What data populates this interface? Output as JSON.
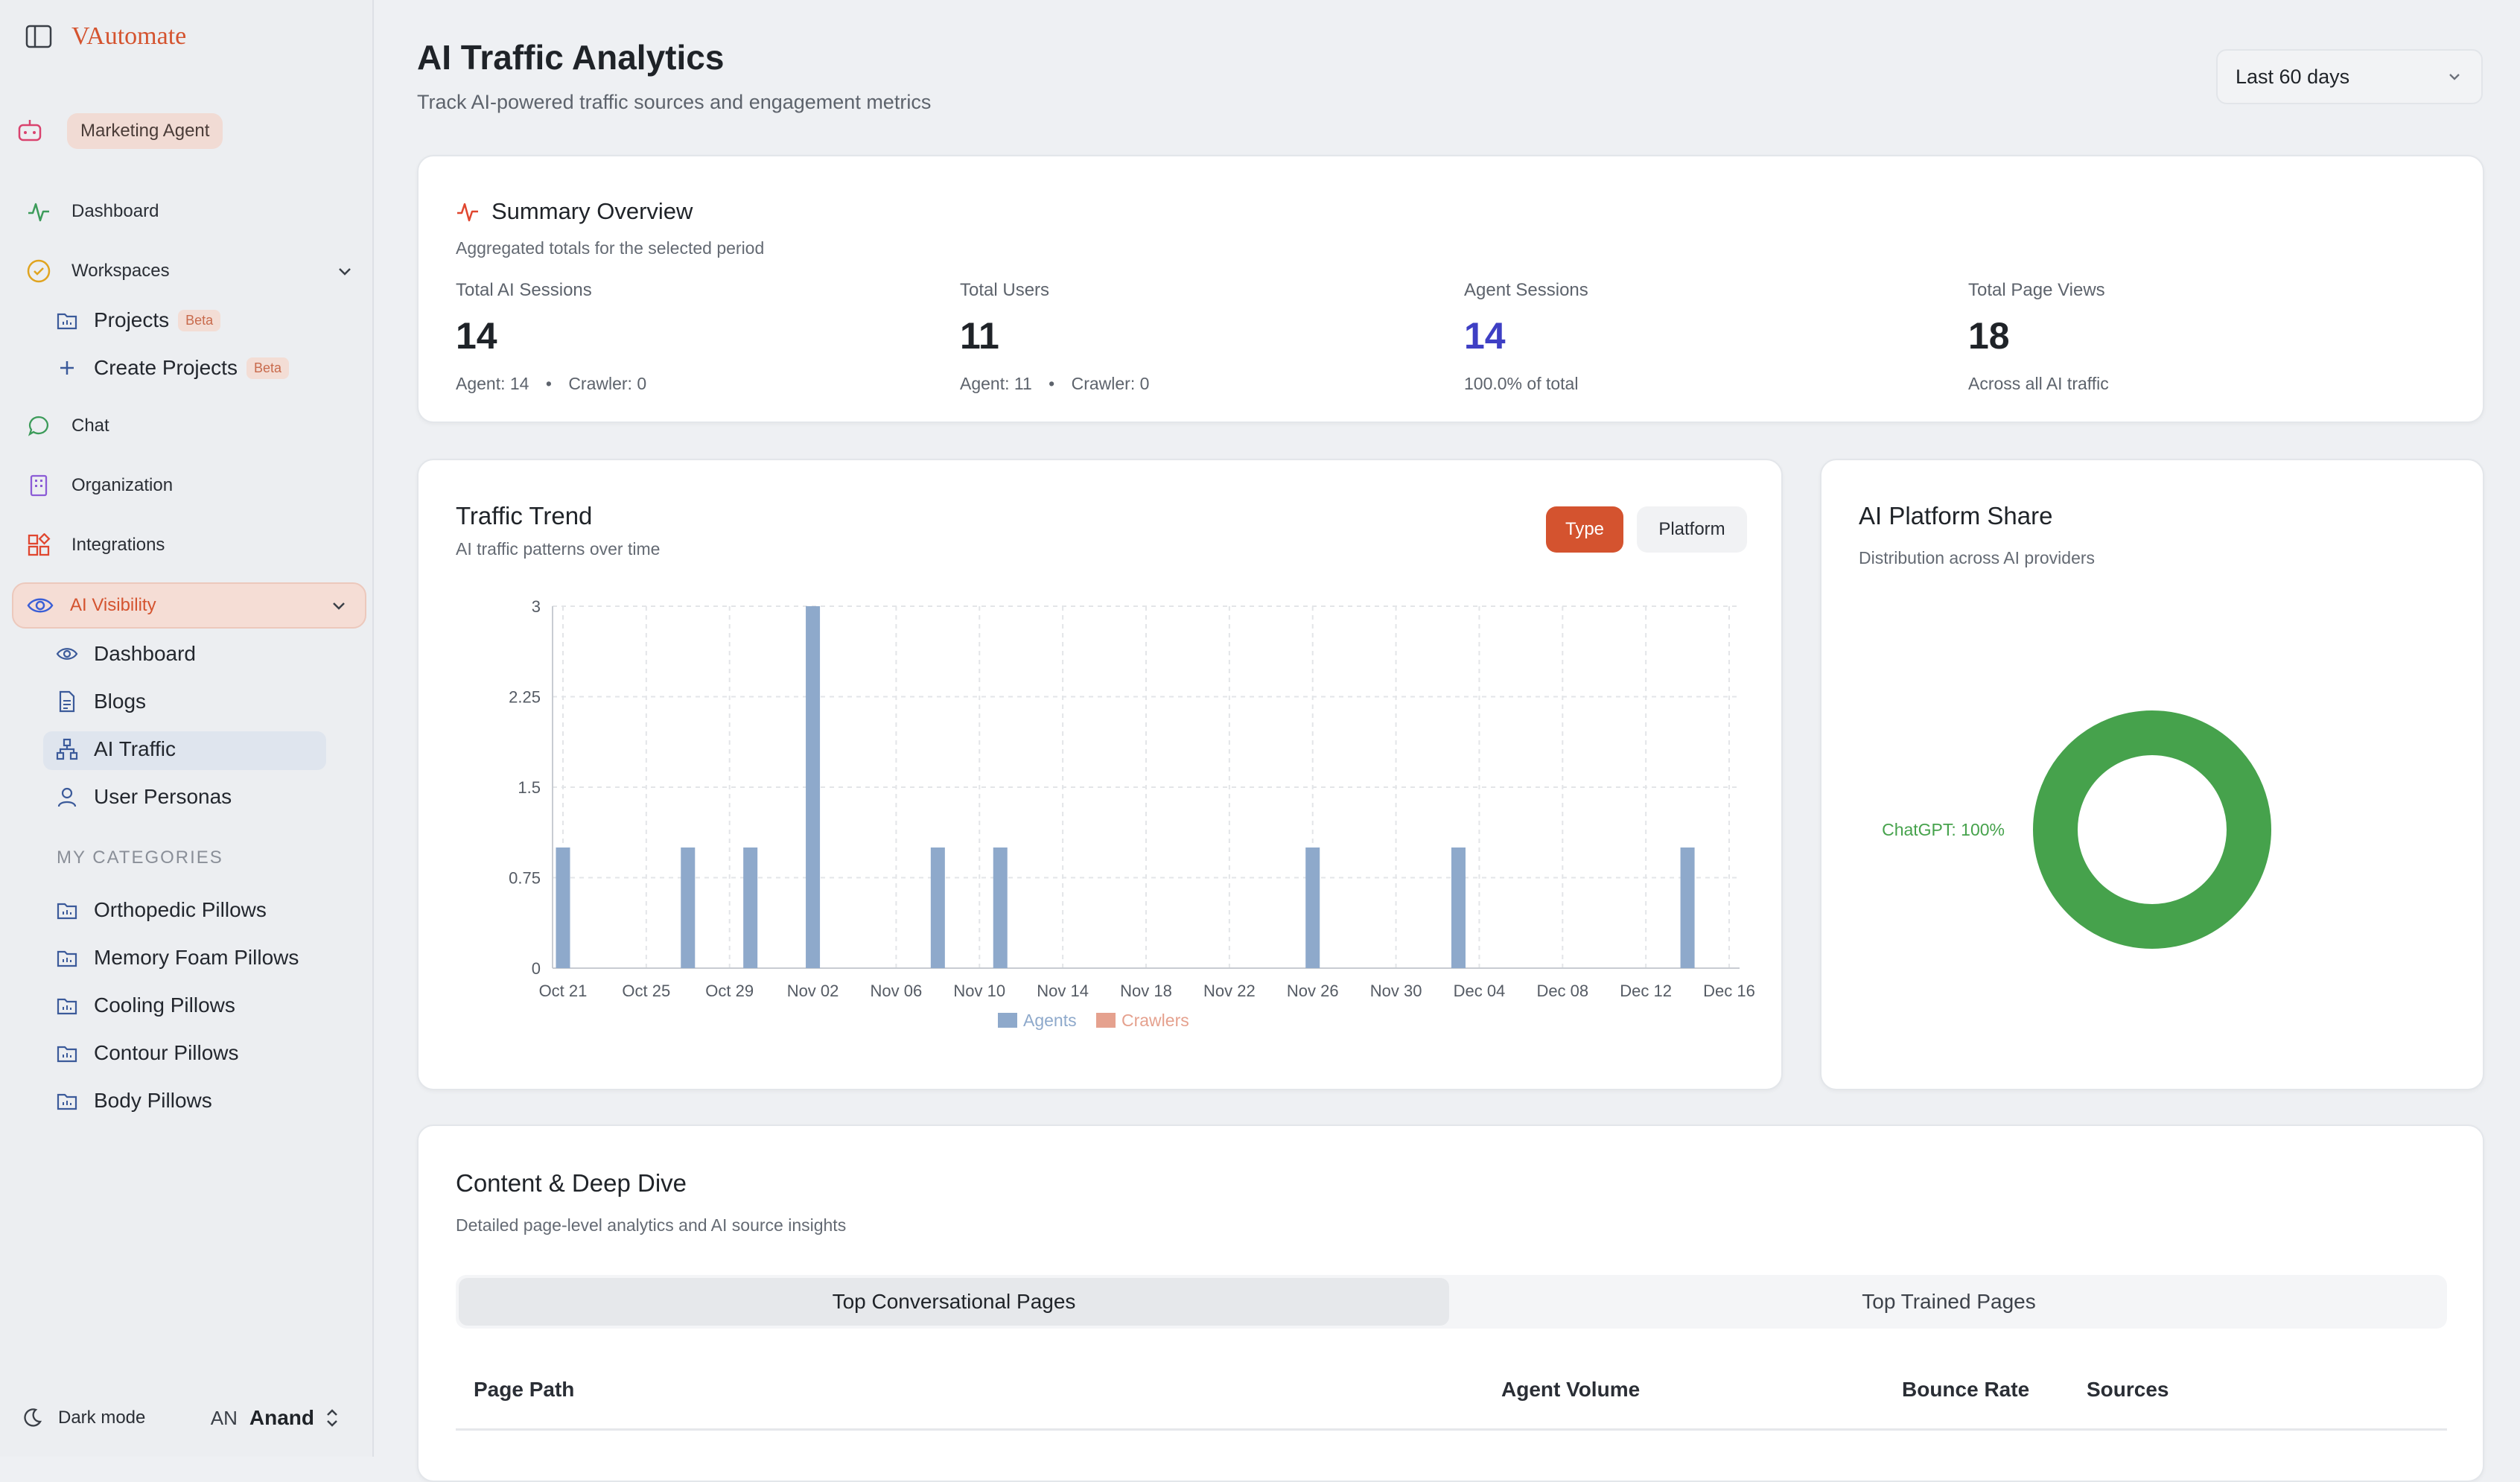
{
  "brand": {
    "name": "VAutomate"
  },
  "agent": {
    "label": "Marketing Agent"
  },
  "nav": {
    "dashboard": "Dashboard",
    "workspaces": "Workspaces",
    "projects": "Projects",
    "create_projects": "Create Projects",
    "beta": "Beta",
    "chat": "Chat",
    "organization": "Organization",
    "integrations": "Integrations",
    "ai_visibility": "AI Visibility",
    "vis_items": [
      "Dashboard",
      "Blogs",
      "AI Traffic",
      "User Personas"
    ],
    "categories_heading": "MY CATEGORIES",
    "categories": [
      "Orthopedic Pillows",
      "Memory Foam Pillows",
      "Cooling Pillows",
      "Contour Pillows",
      "Body Pillows"
    ],
    "dark_mode": "Dark mode",
    "user_initials": "AN",
    "user_name": "Anand"
  },
  "header": {
    "title": "AI Traffic Analytics",
    "subtitle": "Track AI-powered traffic sources and engagement metrics",
    "range": "Last 60 days"
  },
  "summary": {
    "title": "Summary Overview",
    "subtitle": "Aggregated totals for the selected period",
    "metrics": [
      {
        "label": "Total AI Sessions",
        "value": "14",
        "note_a": "Agent: 14",
        "note_b": "Crawler: 0"
      },
      {
        "label": "Total Users",
        "value": "11",
        "note_a": "Agent: 11",
        "note_b": "Crawler: 0"
      },
      {
        "label": "Agent Sessions",
        "value": "14",
        "note": "100.0% of total"
      },
      {
        "label": "Total Page Views",
        "value": "18",
        "note": "Across all AI traffic"
      }
    ],
    "separator": "•"
  },
  "trend": {
    "title": "Traffic Trend",
    "subtitle": "AI traffic patterns over time",
    "btn_type": "Type",
    "btn_platform": "Platform"
  },
  "share": {
    "title": "AI Platform Share",
    "subtitle": "Distribution across AI providers"
  },
  "content": {
    "title": "Content & Deep Dive",
    "subtitle": "Detailed page-level analytics and AI source insights",
    "tab_active": "Top Conversational Pages",
    "tab_other": "Top Trained Pages",
    "columns": [
      "Page Path",
      "Agent Volume",
      "Bounce Rate",
      "Sources"
    ]
  },
  "colors": {
    "accent": "#d4532f",
    "agents": "#8ea9cb",
    "crawlers": "#e5a18e",
    "chatgpt": "#46a24c",
    "agent_sessions_value": "#3e3fc4"
  },
  "chart_data": [
    {
      "type": "bar",
      "x": [
        "Oct 21",
        "Oct 22",
        "Oct 23",
        "Oct 24",
        "Oct 25",
        "Oct 26",
        "Oct 27",
        "Oct 28",
        "Oct 29",
        "Oct 30",
        "Oct 31",
        "Nov 01",
        "Nov 02",
        "Nov 03",
        "Nov 04",
        "Nov 05",
        "Nov 06",
        "Nov 07",
        "Nov 08",
        "Nov 09",
        "Nov 10",
        "Nov 11",
        "Nov 12",
        "Nov 13",
        "Nov 14",
        "Nov 15",
        "Nov 16",
        "Nov 17",
        "Nov 18",
        "Nov 19",
        "Nov 20",
        "Nov 21",
        "Nov 22",
        "Nov 23",
        "Nov 24",
        "Nov 25",
        "Nov 26",
        "Nov 27",
        "Nov 28",
        "Nov 29",
        "Nov 30",
        "Dec 01",
        "Dec 02",
        "Dec 03",
        "Dec 04",
        "Dec 05",
        "Dec 06",
        "Dec 07",
        "Dec 08",
        "Dec 09",
        "Dec 10",
        "Dec 11",
        "Dec 12",
        "Dec 13",
        "Dec 14",
        "Dec 15",
        "Dec 16"
      ],
      "tick_labels": [
        "Oct 21",
        "Oct 25",
        "Oct 29",
        "Nov 02",
        "Nov 06",
        "Nov 10",
        "Nov 14",
        "Nov 18",
        "Nov 22",
        "Nov 26",
        "Nov 30",
        "Dec 04",
        "Dec 08",
        "Dec 12",
        "Dec 16"
      ],
      "series": [
        {
          "name": "Agents",
          "values": [
            1,
            0,
            0,
            0,
            0,
            0,
            1,
            0,
            0,
            1,
            0,
            0,
            3,
            0,
            0,
            0,
            0,
            0,
            1,
            0,
            0,
            1,
            0,
            0,
            0,
            0,
            0,
            0,
            0,
            0,
            0,
            0,
            0,
            0,
            0,
            0,
            1,
            0,
            0,
            0,
            0,
            0,
            0,
            1,
            0,
            0,
            0,
            0,
            0,
            0,
            0,
            0,
            0,
            0,
            1,
            0,
            0
          ]
        },
        {
          "name": "Crawlers",
          "values": [
            0,
            0,
            0,
            0,
            0,
            0,
            0,
            0,
            0,
            0,
            0,
            0,
            0,
            0,
            0,
            0,
            0,
            0,
            0,
            0,
            0,
            0,
            0,
            0,
            0,
            0,
            0,
            0,
            0,
            0,
            0,
            0,
            0,
            0,
            0,
            0,
            0,
            0,
            0,
            0,
            0,
            0,
            0,
            0,
            0,
            0,
            0,
            0,
            0,
            0,
            0,
            0,
            0,
            0,
            0,
            0,
            0
          ]
        }
      ],
      "yticks": [
        "0",
        "0.75",
        "1.5",
        "2.25",
        "3"
      ],
      "ylim": [
        0,
        3
      ],
      "grid": true,
      "legend": "bottom",
      "title": "Traffic Trend"
    },
    {
      "type": "pie",
      "title": "AI Platform Share",
      "slices": [
        {
          "name": "ChatGPT",
          "value": 100,
          "label": "ChatGPT: 100%"
        }
      ]
    }
  ]
}
